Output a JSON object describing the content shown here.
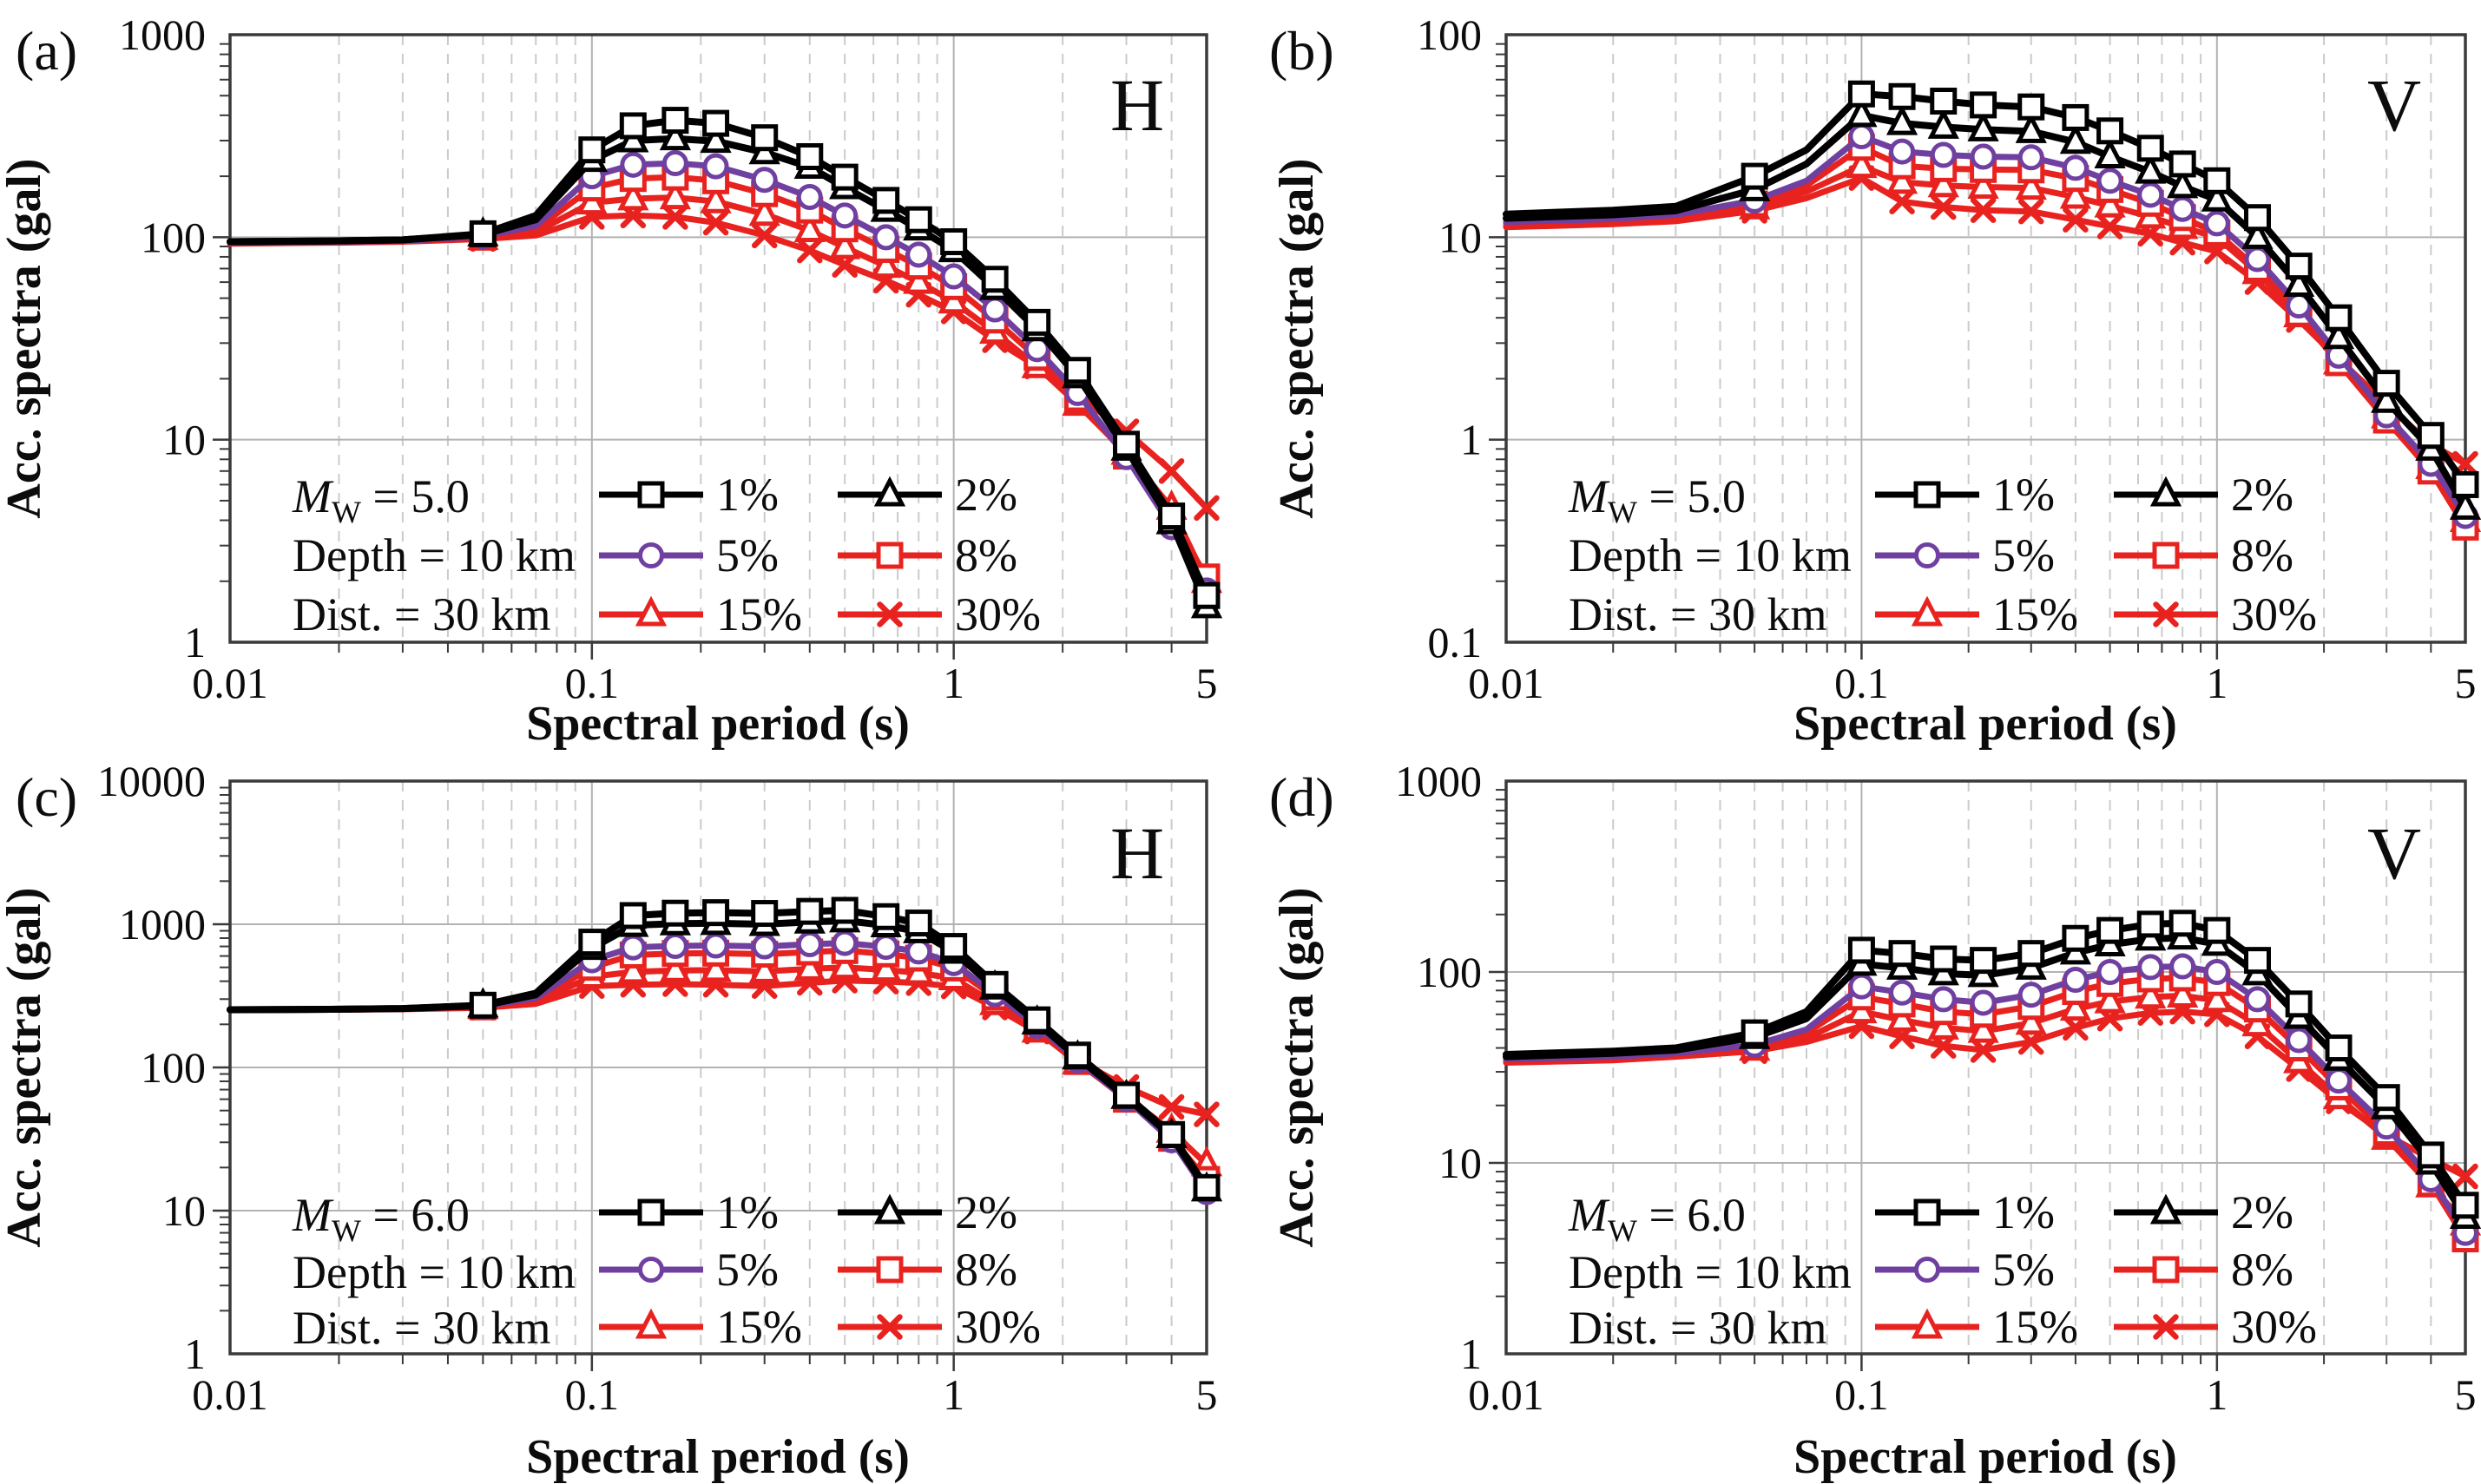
{
  "series_legend": {
    "labels": [
      "1%",
      "2%",
      "5%",
      "8%",
      "15%",
      "30%"
    ],
    "colors": [
      "#000000",
      "#000000",
      "#7040A0",
      "#E8231F",
      "#E8231F",
      "#E8231F"
    ],
    "markers": [
      "square",
      "triangle",
      "circle",
      "square",
      "triangle",
      "x"
    ]
  },
  "panels": [
    {
      "letter": "(a)",
      "corner": "H",
      "mw": {
        "sym": "M",
        "sub": "W",
        "val": " = 5.0"
      },
      "depth": "Depth = 10 km",
      "dist": "Dist. = 30 km",
      "ylabel": "Acc. spectra (gal)",
      "xlabel": "Spectral period (s)"
    },
    {
      "letter": "(b)",
      "corner": "V",
      "mw": {
        "sym": "M",
        "sub": "W",
        "val": " = 5.0"
      },
      "depth": "Depth = 10 km",
      "dist": "Dist. = 30 km",
      "ylabel": "Acc. spectra (gal)",
      "xlabel": "Spectral period (s)"
    },
    {
      "letter": "(c)",
      "corner": "H",
      "mw": {
        "sym": "M",
        "sub": "W",
        "val": " = 6.0"
      },
      "depth": "Depth = 10 km",
      "dist": "Dist. = 30 km",
      "ylabel": "Acc. spectra (gal)",
      "xlabel": "Spectral period (s)"
    },
    {
      "letter": "(d)",
      "corner": "V",
      "mw": {
        "sym": "M",
        "sub": "W",
        "val": " = 6.0"
      },
      "depth": "Depth = 10 km",
      "dist": "Dist. = 30 km",
      "ylabel": "Acc. spectra (gal)",
      "xlabel": "Spectral period (s)"
    }
  ],
  "chart_data": [
    {
      "type": "line",
      "panel": "a",
      "corner": "H",
      "log_x": true,
      "log_y": true,
      "xlabel": "Spectral period (s)",
      "ylabel": "Acc. spectra (gal)",
      "xlim": [
        0.01,
        5
      ],
      "ylim": [
        1,
        1000
      ],
      "x_ticks": [
        {
          "v": 0.01,
          "t": "0.01"
        },
        {
          "v": 0.1,
          "t": "0.1"
        },
        {
          "v": 1,
          "t": "1"
        },
        {
          "v": 5,
          "t": "5"
        }
      ],
      "y_ticks": [
        {
          "v": 1000,
          "t": "1000"
        },
        {
          "v": 100,
          "t": "100"
        },
        {
          "v": 10,
          "t": "10"
        },
        {
          "v": 1,
          "t": "1"
        }
      ],
      "legend": [
        "1%",
        "2%",
        "5%",
        "8%",
        "15%",
        "30%"
      ],
      "annotations": [
        "Mw = 5.0",
        "Depth = 10 km",
        "Dist. = 30 km"
      ],
      "x": [
        0.01,
        0.02,
        0.03,
        0.05,
        0.07,
        0.1,
        0.13,
        0.17,
        0.22,
        0.3,
        0.4,
        0.5,
        0.65,
        0.8,
        1.0,
        1.3,
        1.7,
        2.2,
        3.0,
        4.0,
        5.0
      ],
      "series": [
        {
          "name": "1%",
          "color": "#000000",
          "marker": "square",
          "values": [
            95,
            96,
            97,
            104,
            128,
            270,
            355,
            378,
            365,
            310,
            250,
            198,
            152,
            122,
            95,
            62,
            38,
            22,
            9.5,
            4.2,
            1.7
          ]
        },
        {
          "name": "2%",
          "color": "#000000",
          "marker": "triangle",
          "values": [
            95,
            96,
            97,
            103,
            122,
            240,
            300,
            307,
            298,
            262,
            222,
            176,
            136,
            110,
            86,
            56,
            35,
            20.5,
            9.0,
            3.9,
            1.5
          ]
        },
        {
          "name": "5%",
          "color": "#7040A0",
          "marker": "circle",
          "values": [
            94,
            95,
            96,
            101,
            114,
            200,
            228,
            232,
            224,
            192,
            158,
            128,
            100,
            82,
            64,
            44,
            28,
            17,
            8.2,
            3.7,
            1.8
          ]
        },
        {
          "name": "8%",
          "color": "#E8231F",
          "marker": "square",
          "values": [
            94,
            95,
            96,
            100,
            110,
            175,
            195,
            198,
            190,
            164,
            136,
            110,
            87,
            72,
            57,
            39,
            25.5,
            16,
            8.3,
            4.1,
            2.1
          ]
        },
        {
          "name": "15%",
          "color": "#E8231F",
          "marker": "triangle",
          "values": [
            94,
            95,
            96,
            99,
            106,
            148,
            155,
            157,
            150,
            130,
            108,
            89,
            72,
            60,
            48,
            34,
            23,
            15,
            8.6,
            4.6,
            2.0
          ]
        },
        {
          "name": "30%",
          "color": "#E8231F",
          "marker": "x",
          "values": [
            93,
            94,
            95,
            98,
            102,
            126,
            128,
            126,
            118,
            102,
            86,
            73,
            61,
            52,
            43,
            31,
            23,
            16.5,
            11,
            7.0,
            4.6
          ]
        }
      ]
    },
    {
      "type": "line",
      "panel": "b",
      "corner": "V",
      "log_x": true,
      "log_y": true,
      "xlabel": "Spectral period (s)",
      "ylabel": "Acc. spectra (gal)",
      "xlim": [
        0.01,
        5
      ],
      "ylim": [
        0.1,
        100
      ],
      "x_ticks": [
        {
          "v": 0.01,
          "t": "0.01"
        },
        {
          "v": 0.1,
          "t": "0.1"
        },
        {
          "v": 1,
          "t": "1"
        },
        {
          "v": 5,
          "t": "5"
        }
      ],
      "y_ticks": [
        {
          "v": 100,
          "t": "100"
        },
        {
          "v": 10,
          "t": "10"
        },
        {
          "v": 1,
          "t": "1"
        },
        {
          "v": 0.1,
          "t": "0.1"
        }
      ],
      "legend": [
        "1%",
        "2%",
        "5%",
        "8%",
        "15%",
        "30%"
      ],
      "annotations": [
        "Mw = 5.0",
        "Depth = 10 km",
        "Dist. = 30 km"
      ],
      "x": [
        0.01,
        0.02,
        0.03,
        0.05,
        0.07,
        0.1,
        0.13,
        0.17,
        0.22,
        0.3,
        0.4,
        0.5,
        0.65,
        0.8,
        1.0,
        1.3,
        1.7,
        2.2,
        3.0,
        4.0,
        5.0
      ],
      "series": [
        {
          "name": "1%",
          "color": "#000000",
          "marker": "square",
          "values": [
            13.0,
            13.6,
            14.2,
            20,
            27,
            51,
            49.5,
            47,
            45,
            44,
            39,
            33.5,
            27.5,
            23,
            19,
            12.5,
            7.2,
            4.0,
            1.9,
            1.05,
            0.6
          ]
        },
        {
          "name": "2%",
          "color": "#000000",
          "marker": "triangle",
          "values": [
            12.4,
            12.9,
            13.5,
            17.2,
            23,
            40,
            36.5,
            35,
            34,
            33.3,
            29.5,
            25,
            21,
            17.8,
            15.3,
            10,
            5.8,
            3.2,
            1.55,
            0.9,
            0.46
          ]
        },
        {
          "name": "5%",
          "color": "#7040A0",
          "marker": "circle",
          "values": [
            11.9,
            12.3,
            12.9,
            15.2,
            19,
            31.5,
            26.5,
            25.5,
            25,
            24.8,
            22,
            19,
            16.2,
            13.8,
            11.7,
            7.8,
            4.6,
            2.6,
            1.32,
            0.76,
            0.42
          ]
        },
        {
          "name": "8%",
          "color": "#E8231F",
          "marker": "square",
          "values": [
            11.7,
            12.1,
            12.6,
            14.6,
            18,
            27.8,
            22.5,
            21.8,
            21.6,
            21.5,
            19.5,
            17.2,
            14.7,
            12.5,
            10.5,
            7.0,
            4.2,
            2.4,
            1.25,
            0.7,
            0.37
          ]
        },
        {
          "name": "15%",
          "color": "#E8231F",
          "marker": "triangle",
          "values": [
            11.4,
            11.8,
            12.3,
            14.0,
            16.8,
            22.4,
            18.7,
            18.0,
            17.7,
            17.5,
            15.8,
            14.3,
            12.6,
            11.2,
            10.0,
            6.7,
            4.1,
            2.4,
            1.3,
            0.73,
            0.4
          ]
        },
        {
          "name": "30%",
          "color": "#E8231F",
          "marker": "x",
          "values": [
            11.2,
            11.6,
            12.0,
            13.5,
            15.6,
            19.6,
            15.0,
            14.1,
            13.6,
            13.4,
            12.2,
            11.3,
            10.4,
            9.4,
            8.5,
            6.0,
            3.9,
            2.5,
            1.5,
            0.95,
            0.76
          ]
        }
      ]
    },
    {
      "type": "line",
      "panel": "c",
      "corner": "H",
      "log_x": true,
      "log_y": true,
      "xlabel": "Spectral period (s)",
      "ylabel": "Acc. spectra (gal)",
      "xlim": [
        0.01,
        5
      ],
      "ylim": [
        1,
        10000
      ],
      "x_ticks": [
        {
          "v": 0.01,
          "t": "0.01"
        },
        {
          "v": 0.1,
          "t": "0.1"
        },
        {
          "v": 1,
          "t": "1"
        },
        {
          "v": 5,
          "t": "5"
        }
      ],
      "y_ticks": [
        {
          "v": 10000,
          "t": "10000"
        },
        {
          "v": 1000,
          "t": "1000"
        },
        {
          "v": 100,
          "t": "100"
        },
        {
          "v": 10,
          "t": "10"
        },
        {
          "v": 1,
          "t": "1"
        }
      ],
      "legend": [
        "1%",
        "2%",
        "5%",
        "8%",
        "15%",
        "30%"
      ],
      "annotations": [
        "Mw = 6.0",
        "Depth = 10 km",
        "Dist. = 30 km"
      ],
      "x": [
        0.01,
        0.02,
        0.03,
        0.05,
        0.07,
        0.1,
        0.13,
        0.17,
        0.22,
        0.3,
        0.4,
        0.5,
        0.65,
        0.8,
        1.0,
        1.3,
        1.7,
        2.2,
        3.0,
        4.0,
        5.0
      ],
      "series": [
        {
          "name": "1%",
          "color": "#000000",
          "marker": "square",
          "values": [
            253,
            255,
            258,
            272,
            330,
            750,
            1150,
            1195,
            1205,
            1190,
            1230,
            1250,
            1130,
            1020,
            700,
            380,
            215,
            122,
            64,
            34,
            14.5
          ]
        },
        {
          "name": "2%",
          "color": "#000000",
          "marker": "triangle",
          "values": [
            253,
            255,
            258,
            270,
            322,
            680,
            985,
            1010,
            1015,
            1000,
            1040,
            1060,
            980,
            890,
            640,
            360,
            205,
            117,
            62,
            33,
            14.0
          ]
        },
        {
          "name": "5%",
          "color": "#7040A0",
          "marker": "circle",
          "values": [
            252,
            254,
            257,
            267,
            305,
            560,
            690,
            705,
            710,
            700,
            725,
            740,
            695,
            645,
            535,
            325,
            195,
            112,
            60,
            31,
            13.5
          ]
        },
        {
          "name": "8%",
          "color": "#E8231F",
          "marker": "square",
          "values": [
            252,
            254,
            256,
            265,
            298,
            500,
            610,
            625,
            628,
            618,
            640,
            655,
            620,
            580,
            495,
            310,
            190,
            110,
            60,
            32,
            16.5
          ]
        },
        {
          "name": "15%",
          "color": "#E8231F",
          "marker": "triangle",
          "values": [
            252,
            253,
            256,
            263,
            288,
            430,
            465,
            476,
            478,
            468,
            488,
            500,
            480,
            458,
            418,
            280,
            180,
            108,
            62,
            36,
            21
          ]
        },
        {
          "name": "30%",
          "color": "#E8231F",
          "marker": "x",
          "values": [
            251,
            253,
            255,
            261,
            278,
            370,
            378,
            382,
            378,
            370,
            390,
            404,
            398,
            388,
            368,
            262,
            178,
            113,
            73,
            53,
            47
          ]
        }
      ]
    },
    {
      "type": "line",
      "panel": "d",
      "corner": "V",
      "log_x": true,
      "log_y": true,
      "xlabel": "Spectral period (s)",
      "ylabel": "Acc. spectra (gal)",
      "xlim": [
        0.01,
        5
      ],
      "ylim": [
        1,
        1000
      ],
      "x_ticks": [
        {
          "v": 0.01,
          "t": "0.01"
        },
        {
          "v": 0.1,
          "t": "0.1"
        },
        {
          "v": 1,
          "t": "1"
        },
        {
          "v": 5,
          "t": "5"
        }
      ],
      "y_ticks": [
        {
          "v": 1000,
          "t": "1000"
        },
        {
          "v": 100,
          "t": "100"
        },
        {
          "v": 10,
          "t": "10"
        },
        {
          "v": 1,
          "t": "1"
        }
      ],
      "legend": [
        "1%",
        "2%",
        "5%",
        "8%",
        "15%",
        "30%"
      ],
      "annotations": [
        "Mw = 6.0",
        "Depth = 10 km",
        "Dist. = 30 km"
      ],
      "x": [
        0.01,
        0.02,
        0.03,
        0.05,
        0.07,
        0.1,
        0.13,
        0.17,
        0.22,
        0.3,
        0.4,
        0.5,
        0.65,
        0.8,
        1.0,
        1.3,
        1.7,
        2.2,
        3.0,
        4.0,
        5.0
      ],
      "series": [
        {
          "name": "1%",
          "color": "#000000",
          "marker": "square",
          "values": [
            37,
            38.5,
            40,
            48,
            62,
            130,
            125,
            117,
            115,
            125,
            150,
            165,
            178,
            180,
            165,
            115,
            68,
            40,
            22,
            11,
            6.0
          ]
        },
        {
          "name": "2%",
          "color": "#000000",
          "marker": "triangle",
          "values": [
            36,
            37.5,
            39,
            45.5,
            57,
            110,
            105,
            98,
            96,
            105,
            126,
            139,
            149,
            151,
            140,
            98,
            58,
            35,
            19.5,
            10,
            5.2
          ]
        },
        {
          "name": "5%",
          "color": "#7040A0",
          "marker": "circle",
          "values": [
            35,
            36,
            37.5,
            41.5,
            50,
            84,
            78,
            72,
            69,
            76,
            91,
            100,
            106,
            107,
            100,
            72,
            44,
            27,
            15.5,
            8.2,
            4.3
          ]
        },
        {
          "name": "8%",
          "color": "#E8231F",
          "marker": "square",
          "values": [
            34.5,
            35.5,
            37,
            40.5,
            48,
            74,
            68,
            62,
            60,
            66,
            79,
            87,
            92,
            93,
            88,
            64,
            40,
            25,
            14.5,
            7.8,
            4.0
          ]
        },
        {
          "name": "15%",
          "color": "#E8231F",
          "marker": "triangle",
          "values": [
            34,
            35,
            36.5,
            39.5,
            45,
            62,
            56,
            51,
            49,
            54,
            64,
            70,
            74,
            75,
            71,
            53,
            34,
            22,
            13.5,
            7.6,
            4.8
          ]
        },
        {
          "name": "30%",
          "color": "#E8231F",
          "marker": "x",
          "values": [
            33.5,
            34.5,
            36,
            38.5,
            43,
            52,
            46,
            41,
            39,
            43,
            51,
            57,
            61,
            62,
            60,
            46,
            31,
            21,
            14,
            10.5,
            8.5
          ]
        }
      ]
    }
  ]
}
